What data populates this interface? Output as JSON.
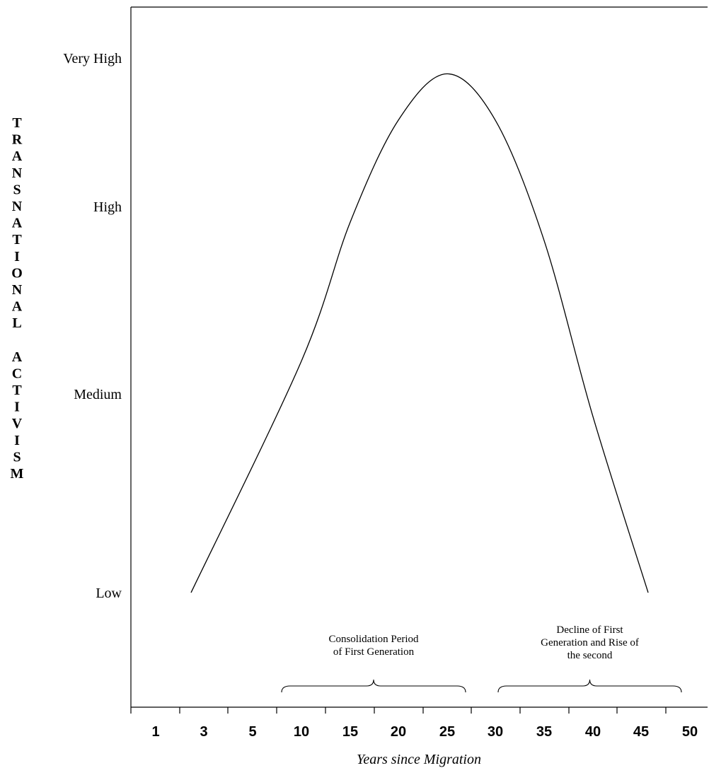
{
  "chart_data": {
    "type": "line",
    "ylabel": "TRANSNATIONAL ACTIVISM",
    "xlabel": "Years since Migration",
    "categories": [
      "1",
      "3",
      "5",
      "10",
      "15",
      "20",
      "25",
      "30",
      "35",
      "40",
      "45",
      "50"
    ],
    "y_levels": [
      "Very High",
      "High",
      "Medium",
      "Low"
    ],
    "series": [
      {
        "values": [
          {
            "x": 3,
            "y": 0.0
          },
          {
            "x": 10,
            "y": 1.25
          },
          {
            "x": 15,
            "y": 2.0
          },
          {
            "x": 20,
            "y": 2.55
          },
          {
            "x": 25,
            "y": 2.8
          },
          {
            "x": 30,
            "y": 2.55
          },
          {
            "x": 35,
            "y": 1.9
          },
          {
            "x": 40,
            "y": 0.95
          },
          {
            "x": 45,
            "y": 0.0
          }
        ]
      }
    ],
    "annotations": [
      {
        "lines": [
          "Consolidation Period",
          "of First Generation"
        ],
        "from": "5",
        "to": "25"
      },
      {
        "lines": [
          "Decline of First",
          "Generation and Rise of",
          "the second"
        ],
        "from": "30",
        "to": "50"
      }
    ],
    "grid": false,
    "legend": "none"
  }
}
